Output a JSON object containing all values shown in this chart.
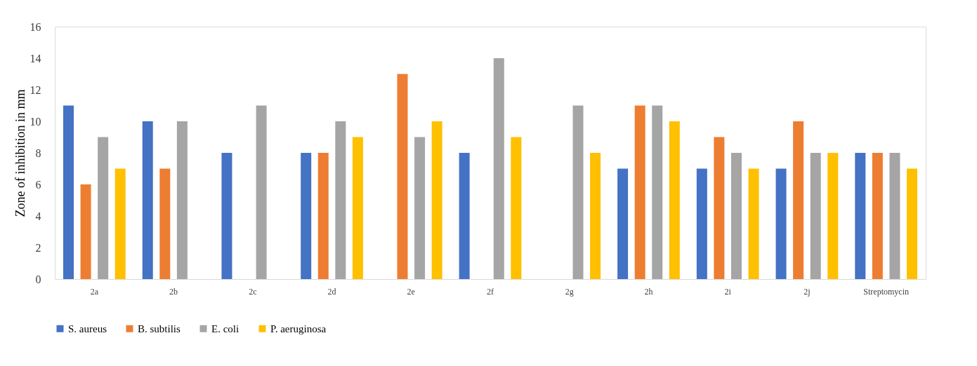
{
  "chart_data": {
    "type": "bar",
    "ylabel": "Zone of inhibition in mm",
    "categories": [
      "2a",
      "2b",
      "2c",
      "2d",
      "2e",
      "2f",
      "2g",
      "2h",
      "2i",
      "2j",
      "Streptomycin"
    ],
    "series": [
      {
        "name": "S. aureus",
        "color": "#4472c4",
        "values": [
          11,
          10,
          8,
          8,
          null,
          8,
          null,
          7,
          7,
          7,
          8
        ]
      },
      {
        "name": "B. subtilis",
        "color": "#ed7d31",
        "values": [
          6,
          7,
          null,
          8,
          13,
          null,
          null,
          11,
          9,
          10,
          8
        ]
      },
      {
        "name": "E. coli",
        "color": "#a5a5a5",
        "values": [
          9,
          10,
          11,
          10,
          9,
          14,
          11,
          11,
          8,
          8,
          8
        ]
      },
      {
        "name": "P. aeruginosa",
        "color": "#ffc000",
        "values": [
          7,
          null,
          null,
          9,
          10,
          9,
          8,
          10,
          7,
          8,
          7
        ]
      }
    ],
    "ylim": [
      0,
      16
    ],
    "yticks": [
      0,
      2,
      4,
      6,
      8,
      10,
      12,
      14,
      16
    ],
    "grid": false,
    "legend": "bottom"
  }
}
